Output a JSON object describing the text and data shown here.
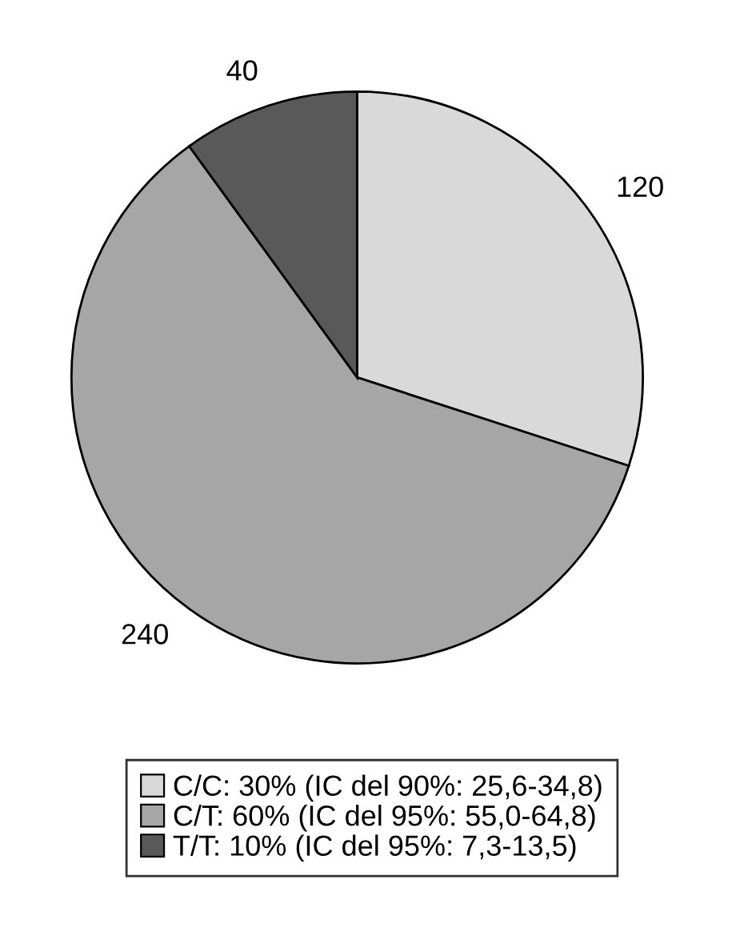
{
  "chart_data": {
    "type": "pie",
    "categories": [
      "C/C: 30% (IC del 90%: 25,6-34,8)",
      "C/T: 60% (IC del 95%: 55,0-64,8)",
      "T/T: 10% (IC del 95%: 7,3-13,5)"
    ],
    "values": [
      120,
      240,
      40
    ],
    "colors": [
      "#d9d9d9",
      "#a6a6a6",
      "#595959"
    ],
    "data_labels": true,
    "legend": "bottom"
  }
}
